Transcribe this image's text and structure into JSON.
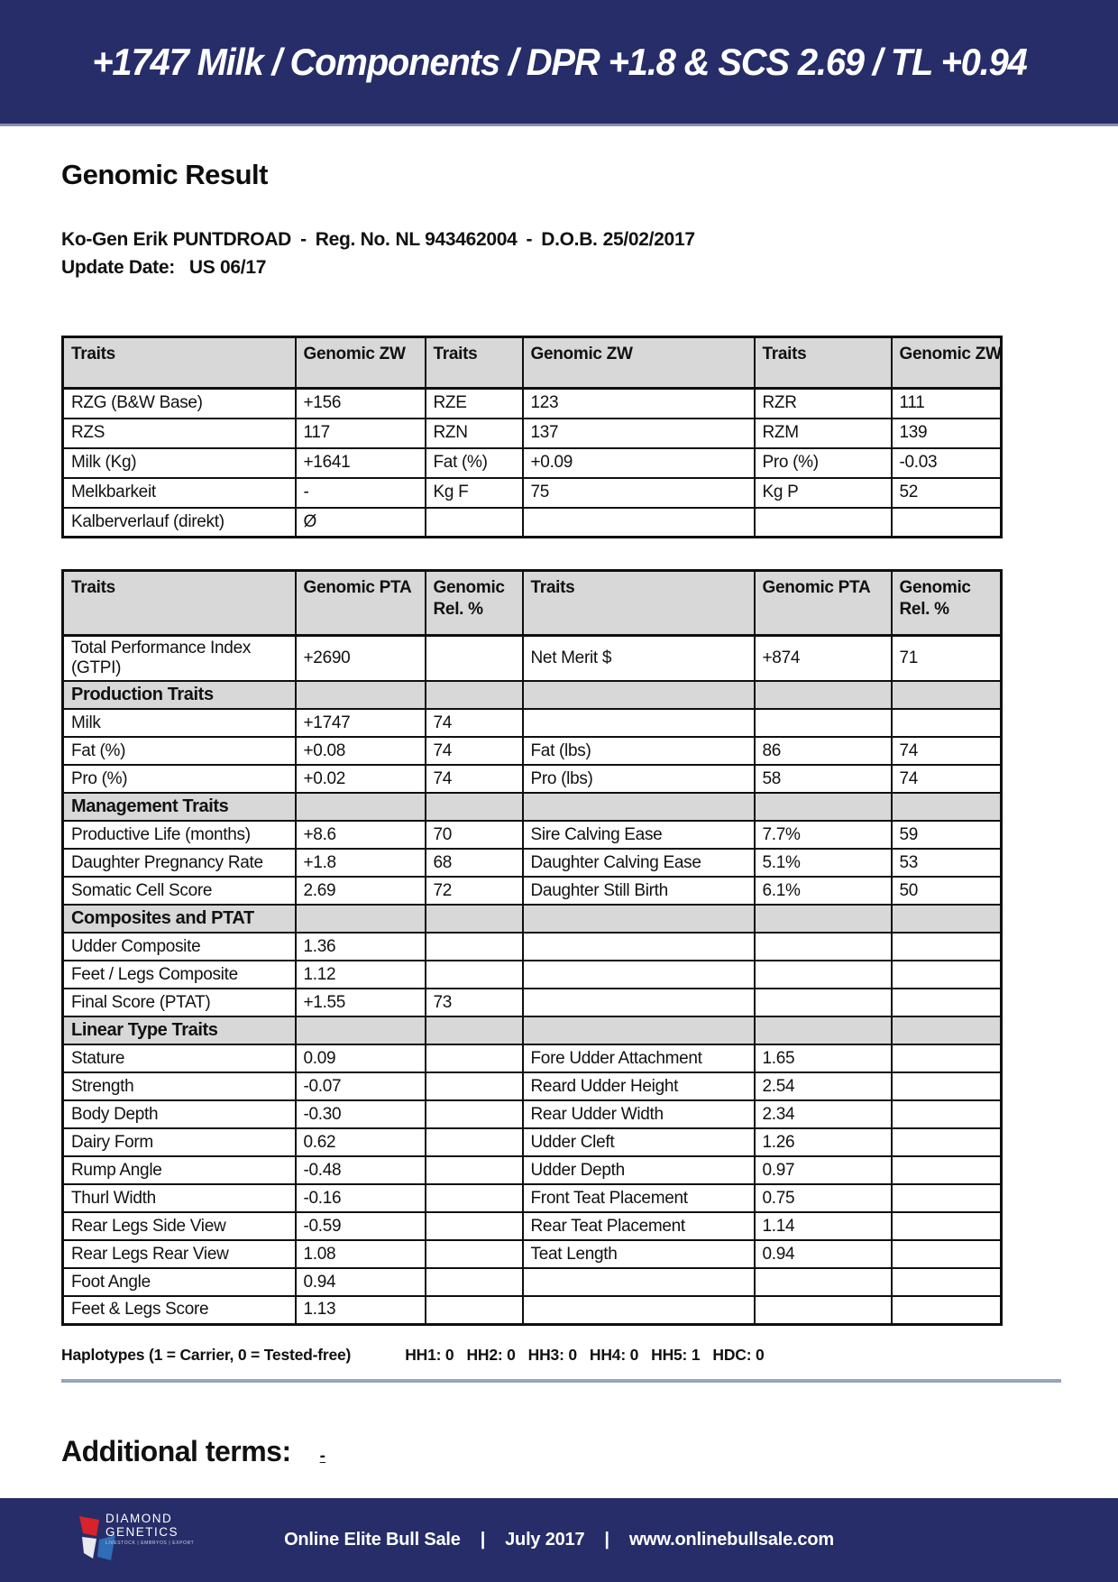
{
  "banner": {
    "title": "+1747 Milk / Components / DPR +1.8 & SCS 2.69 / TL +0.94"
  },
  "page": {
    "heading": "Genomic Result"
  },
  "bull": {
    "name": "Ko-Gen Erik PUNTDROAD",
    "sep1": "-",
    "reg_label": "Reg. No.",
    "reg_no": "NL 943462004",
    "sep2": "-",
    "dob_label": "D.O.B.",
    "dob": "25/02/2017",
    "update_label": "Update Date:",
    "update_value": "US 06/17"
  },
  "zw_table": {
    "headers": [
      "Traits",
      "Genomic ZW",
      "Traits",
      "Genomic ZW",
      "Traits",
      "Genomic ZW"
    ],
    "rows": [
      {
        "cells": [
          "RZG (B&W Base)",
          "+156",
          "RZE",
          "123",
          "RZR",
          "111"
        ]
      },
      {
        "cells": [
          "RZS",
          "117",
          "RZN",
          "137",
          "RZM",
          "139"
        ]
      },
      {
        "cells": [
          "Milk (Kg)",
          "+1641",
          "Fat (%)",
          "+0.09",
          "Pro (%)",
          "-0.03"
        ]
      },
      {
        "cells": [
          "Melkbarkeit",
          "-",
          "Kg F",
          "75",
          "Kg P",
          "52"
        ]
      },
      {
        "cells": [
          "Kalberverlauf (direkt)",
          "Ø",
          "",
          "",
          "",
          ""
        ]
      }
    ]
  },
  "pta_table": {
    "headers": [
      "Traits",
      "Genomic PTA",
      "Genomic Rel. %",
      "Traits",
      "Genomic PTA",
      "Genomic Rel. %"
    ],
    "rows": [
      {
        "cells": [
          "Total Performance Index (GTPI)",
          "+2690",
          "",
          "Net Merit $",
          "+874",
          "71"
        ]
      },
      {
        "section": true,
        "cells": [
          "Production Traits",
          "",
          "",
          "",
          "",
          ""
        ]
      },
      {
        "cells": [
          "Milk",
          "+1747",
          "74",
          "",
          "",
          ""
        ]
      },
      {
        "cells": [
          "Fat (%)",
          "+0.08",
          "74",
          "Fat (lbs)",
          "86",
          "74"
        ]
      },
      {
        "cells": [
          "Pro (%)",
          "+0.02",
          "74",
          "Pro (lbs)",
          "58",
          "74"
        ]
      },
      {
        "section": true,
        "cells": [
          "Management Traits",
          "",
          "",
          "",
          "",
          ""
        ]
      },
      {
        "cells": [
          "Productive Life (months)",
          "+8.6",
          "70",
          "Sire Calving Ease",
          "7.7%",
          "59"
        ]
      },
      {
        "cells": [
          "Daughter Pregnancy Rate",
          "+1.8",
          "68",
          "Daughter Calving Ease",
          "5.1%",
          "53"
        ]
      },
      {
        "cells": [
          "Somatic Cell Score",
          "2.69",
          "72",
          "Daughter Still Birth",
          "6.1%",
          "50"
        ]
      },
      {
        "section": true,
        "cells": [
          "Composites and PTAT",
          "",
          "",
          "",
          "",
          ""
        ]
      },
      {
        "cells": [
          "Udder Composite",
          "1.36",
          "",
          "",
          "",
          ""
        ]
      },
      {
        "cells": [
          "Feet / Legs Composite",
          "1.12",
          "",
          "",
          "",
          ""
        ]
      },
      {
        "cells": [
          "Final Score (PTAT)",
          "+1.55",
          "73",
          "",
          "",
          ""
        ]
      },
      {
        "section": true,
        "cells": [
          "Linear Type Traits",
          "",
          "",
          "",
          "",
          ""
        ]
      },
      {
        "cells": [
          "Stature",
          "0.09",
          "",
          "Fore Udder Attachment",
          "1.65",
          ""
        ]
      },
      {
        "cells": [
          "Strength",
          "-0.07",
          "",
          "Reard Udder Height",
          "2.54",
          ""
        ]
      },
      {
        "cells": [
          "Body Depth",
          "-0.30",
          "",
          "Rear Udder Width",
          "2.34",
          ""
        ]
      },
      {
        "cells": [
          "Dairy Form",
          "0.62",
          "",
          "Udder Cleft",
          "1.26",
          ""
        ]
      },
      {
        "cells": [
          "Rump Angle",
          "-0.48",
          "",
          "Udder Depth",
          "0.97",
          ""
        ]
      },
      {
        "cells": [
          "Thurl Width",
          "-0.16",
          "",
          "Front Teat Placement",
          "0.75",
          ""
        ]
      },
      {
        "cells": [
          "Rear Legs Side View",
          "-0.59",
          "",
          "Rear Teat Placement",
          "1.14",
          ""
        ]
      },
      {
        "cells": [
          "Rear Legs Rear View",
          "1.08",
          "",
          "Teat Length",
          "0.94",
          ""
        ]
      },
      {
        "cells": [
          "Foot Angle",
          "0.94",
          "",
          "",
          "",
          ""
        ]
      },
      {
        "cells": [
          "Feet & Legs Score",
          "1.13",
          "",
          "",
          "",
          ""
        ]
      }
    ]
  },
  "haplotypes": {
    "label": "Haplotypes (1 = Carrier, 0 = Tested-free)",
    "items": [
      "HH1: 0",
      "HH2: 0",
      "HH3: 0",
      "HH4: 0",
      "HH5: 1",
      "HDC: 0"
    ]
  },
  "additional_terms": {
    "label": "Additional terms:",
    "value": "-"
  },
  "footer": {
    "logo": {
      "line1": "DIAMOND",
      "line2": "GENETICS",
      "tagline": "LIVESTOCK | EMBRYOS | EXPORT"
    },
    "parts": [
      "Online Elite Bull Sale",
      "July 2017",
      "www.onlinebullsale.com"
    ],
    "separator": "|"
  },
  "colors": {
    "navy": "#262d68",
    "accent_line": "#8690b4",
    "table_header_bg": "#d8d8d8",
    "divider": "#9aa3bd",
    "logo_red": "#d8232a",
    "logo_blue": "#2f6db6"
  }
}
